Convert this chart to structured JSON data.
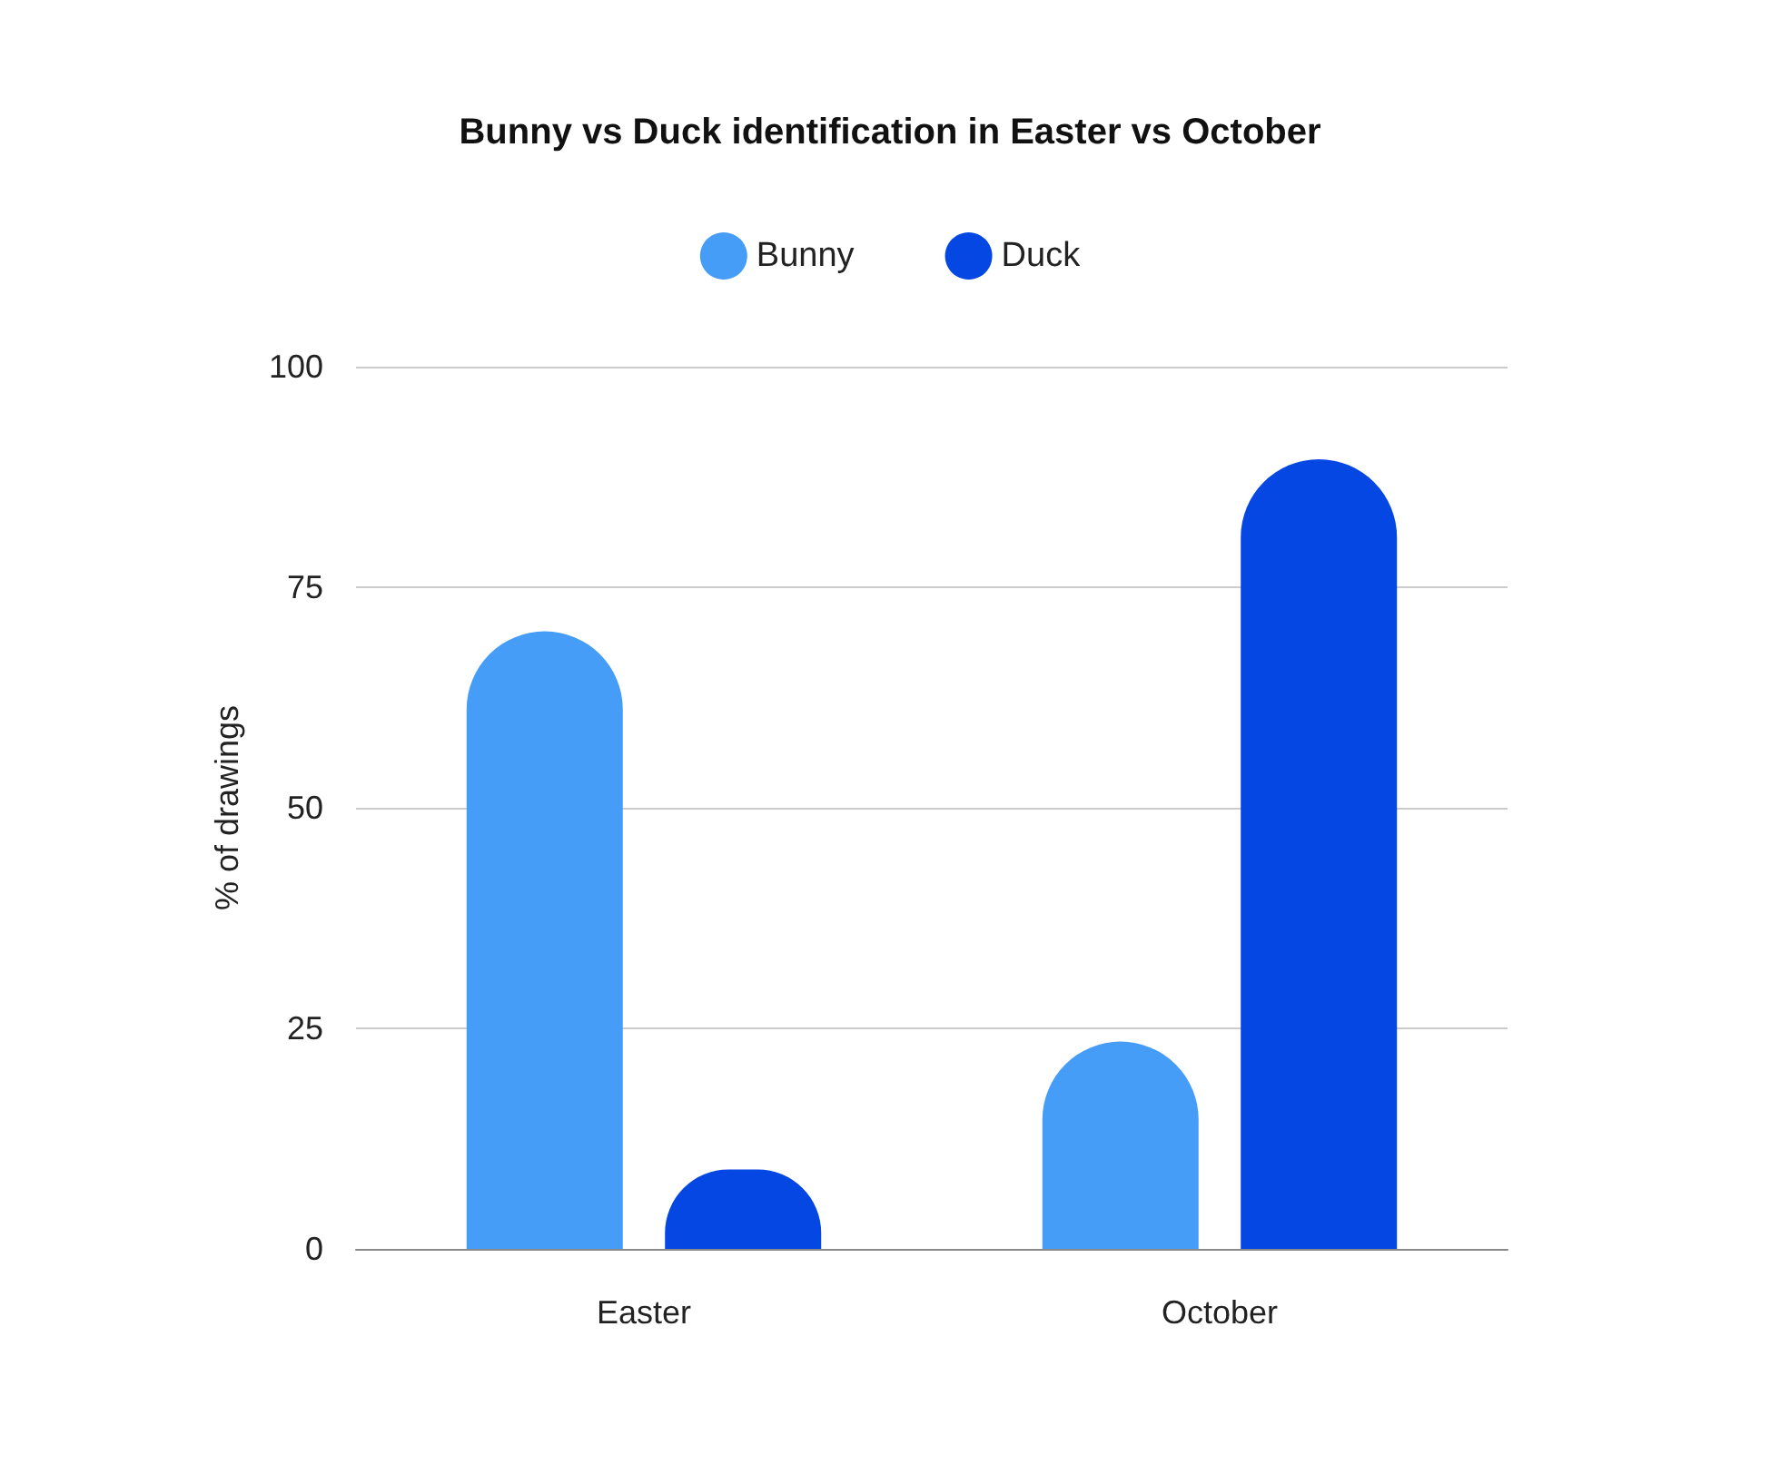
{
  "chart_data": {
    "type": "bar",
    "title": "Bunny vs Duck identification in Easter vs October",
    "ylabel": "% of drawings",
    "categories": [
      "Easter",
      "October"
    ],
    "series": [
      {
        "name": "Bunny",
        "color": "#469df7",
        "values": [
          70,
          23.5
        ]
      },
      {
        "name": "Duck",
        "color": "#0547e3",
        "values": [
          9,
          89.5
        ]
      }
    ],
    "ylim": [
      0,
      100
    ],
    "yticks": [
      0,
      25,
      50,
      75,
      100
    ],
    "grid": "y",
    "legend": "top"
  }
}
